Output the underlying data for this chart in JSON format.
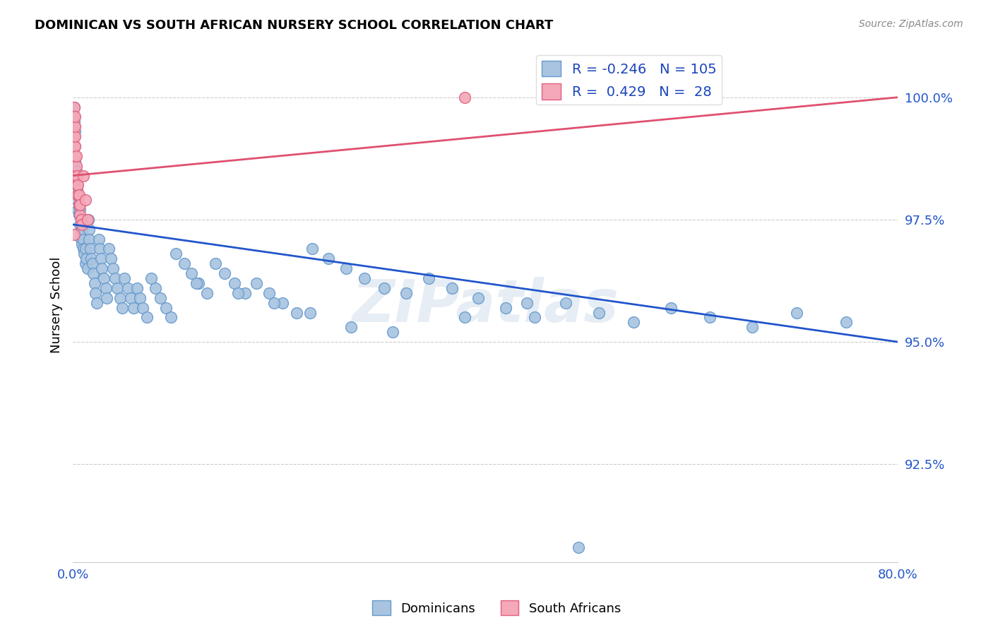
{
  "title": "DOMINICAN VS SOUTH AFRICAN NURSERY SCHOOL CORRELATION CHART",
  "source": "Source: ZipAtlas.com",
  "ylabel": "Nursery School",
  "ytick_labels": [
    "92.5%",
    "95.0%",
    "97.5%",
    "100.0%"
  ],
  "ytick_values": [
    0.925,
    0.95,
    0.975,
    1.0
  ],
  "xmin": 0.0,
  "xmax": 0.8,
  "ymin": 0.905,
  "ymax": 1.01,
  "dominican_color": "#a8c4e0",
  "south_african_color": "#f4a8b8",
  "dominican_edge": "#6699cc",
  "south_african_edge": "#e06080",
  "trend_blue": "#2255cc",
  "trend_pink": "#e05070",
  "R_dominican": -0.246,
  "N_dominican": 105,
  "R_south_african": 0.429,
  "N_south_african": 28,
  "legend_text_color": "#1a44bb",
  "watermark": "ZIPatlas",
  "blue_trend_y0": 0.974,
  "blue_trend_y1": 0.95,
  "pink_trend_y0": 0.984,
  "pink_trend_y1": 1.0,
  "dom_x": [
    0.001,
    0.001,
    0.002,
    0.002,
    0.002,
    0.003,
    0.003,
    0.004,
    0.004,
    0.005,
    0.005,
    0.006,
    0.006,
    0.007,
    0.007,
    0.008,
    0.008,
    0.008,
    0.009,
    0.009,
    0.01,
    0.01,
    0.011,
    0.012,
    0.012,
    0.013,
    0.014,
    0.015,
    0.016,
    0.016,
    0.017,
    0.018,
    0.019,
    0.02,
    0.021,
    0.022,
    0.023,
    0.025,
    0.026,
    0.027,
    0.028,
    0.03,
    0.032,
    0.033,
    0.035,
    0.037,
    0.039,
    0.041,
    0.043,
    0.046,
    0.048,
    0.05,
    0.053,
    0.056,
    0.059,
    0.062,
    0.065,
    0.068,
    0.072,
    0.076,
    0.08,
    0.085,
    0.09,
    0.095,
    0.1,
    0.108,
    0.115,
    0.122,
    0.13,
    0.138,
    0.147,
    0.157,
    0.167,
    0.178,
    0.19,
    0.203,
    0.217,
    0.232,
    0.248,
    0.265,
    0.283,
    0.302,
    0.323,
    0.345,
    0.368,
    0.393,
    0.42,
    0.448,
    0.478,
    0.51,
    0.544,
    0.58,
    0.618,
    0.659,
    0.702,
    0.75,
    0.31,
    0.38,
    0.44,
    0.12,
    0.16,
    0.195,
    0.23,
    0.27,
    0.49
  ],
  "dom_y": [
    0.998,
    0.995,
    0.993,
    0.99,
    0.987,
    0.985,
    0.983,
    0.981,
    0.979,
    0.977,
    0.98,
    0.978,
    0.976,
    0.974,
    0.977,
    0.975,
    0.973,
    0.971,
    0.97,
    0.973,
    0.971,
    0.969,
    0.968,
    0.966,
    0.969,
    0.967,
    0.965,
    0.975,
    0.973,
    0.971,
    0.969,
    0.967,
    0.966,
    0.964,
    0.962,
    0.96,
    0.958,
    0.971,
    0.969,
    0.967,
    0.965,
    0.963,
    0.961,
    0.959,
    0.969,
    0.967,
    0.965,
    0.963,
    0.961,
    0.959,
    0.957,
    0.963,
    0.961,
    0.959,
    0.957,
    0.961,
    0.959,
    0.957,
    0.955,
    0.963,
    0.961,
    0.959,
    0.957,
    0.955,
    0.968,
    0.966,
    0.964,
    0.962,
    0.96,
    0.966,
    0.964,
    0.962,
    0.96,
    0.962,
    0.96,
    0.958,
    0.956,
    0.969,
    0.967,
    0.965,
    0.963,
    0.961,
    0.96,
    0.963,
    0.961,
    0.959,
    0.957,
    0.955,
    0.958,
    0.956,
    0.954,
    0.957,
    0.955,
    0.953,
    0.956,
    0.954,
    0.952,
    0.955,
    0.958,
    0.962,
    0.96,
    0.958,
    0.956,
    0.953,
    0.908
  ],
  "sa_x": [
    0.001,
    0.001,
    0.001,
    0.001,
    0.001,
    0.002,
    0.002,
    0.002,
    0.002,
    0.002,
    0.003,
    0.003,
    0.003,
    0.004,
    0.004,
    0.005,
    0.005,
    0.006,
    0.006,
    0.007,
    0.007,
    0.008,
    0.009,
    0.01,
    0.012,
    0.014,
    0.38,
    0.001
  ],
  "sa_y": [
    0.998,
    0.996,
    0.994,
    0.992,
    0.99,
    0.988,
    0.99,
    0.992,
    0.994,
    0.996,
    0.984,
    0.986,
    0.988,
    0.982,
    0.984,
    0.98,
    0.982,
    0.978,
    0.98,
    0.976,
    0.978,
    0.975,
    0.974,
    0.984,
    0.979,
    0.975,
    1.0,
    0.972
  ]
}
